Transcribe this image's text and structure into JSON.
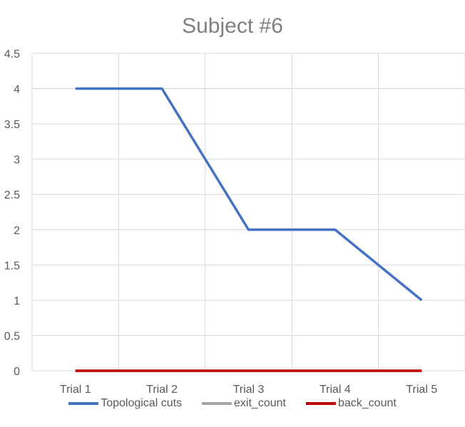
{
  "chart_data": {
    "type": "line",
    "title": "Subject #6",
    "categories": [
      "Trial 1",
      "Trial 2",
      "Trial 3",
      "Trial 4",
      "Trial 5"
    ],
    "ylim": [
      0,
      4.5
    ],
    "yticks": [
      "0",
      "0.5",
      "1",
      "1.5",
      "2",
      "2.5",
      "3",
      "3.5",
      "4",
      "4.5"
    ],
    "grid": true,
    "legend_position": "bottom",
    "series": [
      {
        "name": "Topological cuts",
        "values": [
          4,
          4,
          2,
          2,
          1
        ],
        "color": "#4472C4"
      },
      {
        "name": "exit_count",
        "values": [
          0,
          0,
          0,
          0,
          0
        ],
        "color": "#A5A5A5"
      },
      {
        "name": "back_count",
        "values": [
          0,
          0,
          0,
          0,
          0
        ],
        "color": "#C00000"
      }
    ]
  }
}
